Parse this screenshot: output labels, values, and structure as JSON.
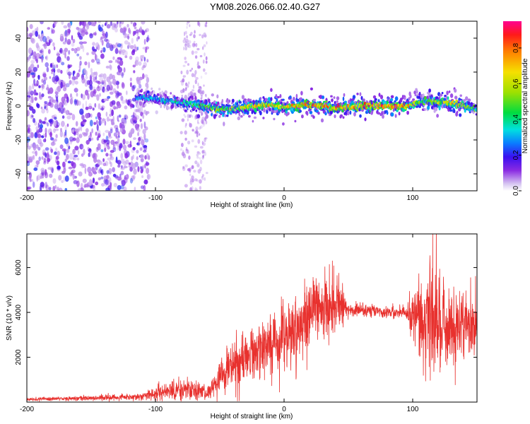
{
  "title": "YM08.2026.066.02.40.G27",
  "chart_data": [
    {
      "type": "heatmap",
      "xlabel": "Height of straight line (km)",
      "ylabel": "Frequency (Hz)",
      "xlim": [
        -200,
        150
      ],
      "ylim": [
        -50,
        50
      ],
      "xticks": [
        -200,
        -100,
        0,
        100
      ],
      "yticks": [
        -40,
        -20,
        0,
        20,
        40
      ],
      "colorbar": {
        "label": "Normalized spectral amplitude",
        "range": [
          0.0,
          0.95
        ],
        "ticks": [
          0.0,
          0.2,
          0.4,
          0.6,
          0.8
        ],
        "tick_labels": [
          "0.0",
          "0.2",
          "0.4",
          "0.6",
          "0.8"
        ]
      },
      "signal_band": {
        "center_frequency_hz": [
          {
            "x": -110,
            "f": 5
          },
          {
            "x": -90,
            "f": 3
          },
          {
            "x": -70,
            "f": 1
          },
          {
            "x": -50,
            "f": -2
          },
          {
            "x": -30,
            "f": -1
          },
          {
            "x": -15,
            "f": 1
          },
          {
            "x": 0,
            "f": -1
          },
          {
            "x": 20,
            "f": 1
          },
          {
            "x": 40,
            "f": -1
          },
          {
            "x": 60,
            "f": 0
          },
          {
            "x": 95,
            "f": 0
          },
          {
            "x": 110,
            "f": 3
          },
          {
            "x": 130,
            "f": 2
          },
          {
            "x": 150,
            "f": -2
          }
        ],
        "peak_amplitude": [
          {
            "x": -110,
            "a": 0.35
          },
          {
            "x": -80,
            "a": 0.45
          },
          {
            "x": -50,
            "a": 0.6
          },
          {
            "x": -20,
            "a": 0.75
          },
          {
            "x": 0,
            "a": 0.8
          },
          {
            "x": 40,
            "a": 0.9
          },
          {
            "x": 95,
            "a": 0.9
          },
          {
            "x": 110,
            "a": 0.5
          },
          {
            "x": 130,
            "a": 0.85
          },
          {
            "x": 150,
            "a": 0.5
          }
        ]
      },
      "noise_region_km": [
        -200,
        -105
      ],
      "noise_strip_km": [
        -80,
        -60
      ]
    },
    {
      "type": "line",
      "xlabel": "Height of straight line (km)",
      "ylabel": "SNR (10 * v/v)",
      "xlim": [
        -200,
        150
      ],
      "ylim": [
        0,
        7500
      ],
      "xticks": [
        -200,
        -100,
        0,
        100
      ],
      "yticks": [
        2000,
        4000,
        6000
      ],
      "color": "#e8312e",
      "envelope": [
        {
          "x": -200,
          "mean": 120,
          "spread": 60
        },
        {
          "x": -150,
          "mean": 180,
          "spread": 120
        },
        {
          "x": -110,
          "mean": 250,
          "spread": 150
        },
        {
          "x": -95,
          "mean": 450,
          "spread": 400
        },
        {
          "x": -75,
          "mean": 600,
          "spread": 450
        },
        {
          "x": -60,
          "mean": 350,
          "spread": 250
        },
        {
          "x": -45,
          "mean": 1400,
          "spread": 900
        },
        {
          "x": -20,
          "mean": 2300,
          "spread": 1200
        },
        {
          "x": 0,
          "mean": 2800,
          "spread": 1400
        },
        {
          "x": 20,
          "mean": 3900,
          "spread": 1500
        },
        {
          "x": 40,
          "mean": 4500,
          "spread": 1300
        },
        {
          "x": 50,
          "mean": 4100,
          "spread": 250
        },
        {
          "x": 95,
          "mean": 4000,
          "spread": 250
        },
        {
          "x": 100,
          "mean": 3900,
          "spread": 1200
        },
        {
          "x": 115,
          "mean": 3600,
          "spread": 2700
        },
        {
          "x": 125,
          "mean": 3400,
          "spread": 1600
        },
        {
          "x": 150,
          "mean": 3600,
          "spread": 1300
        }
      ]
    }
  ]
}
